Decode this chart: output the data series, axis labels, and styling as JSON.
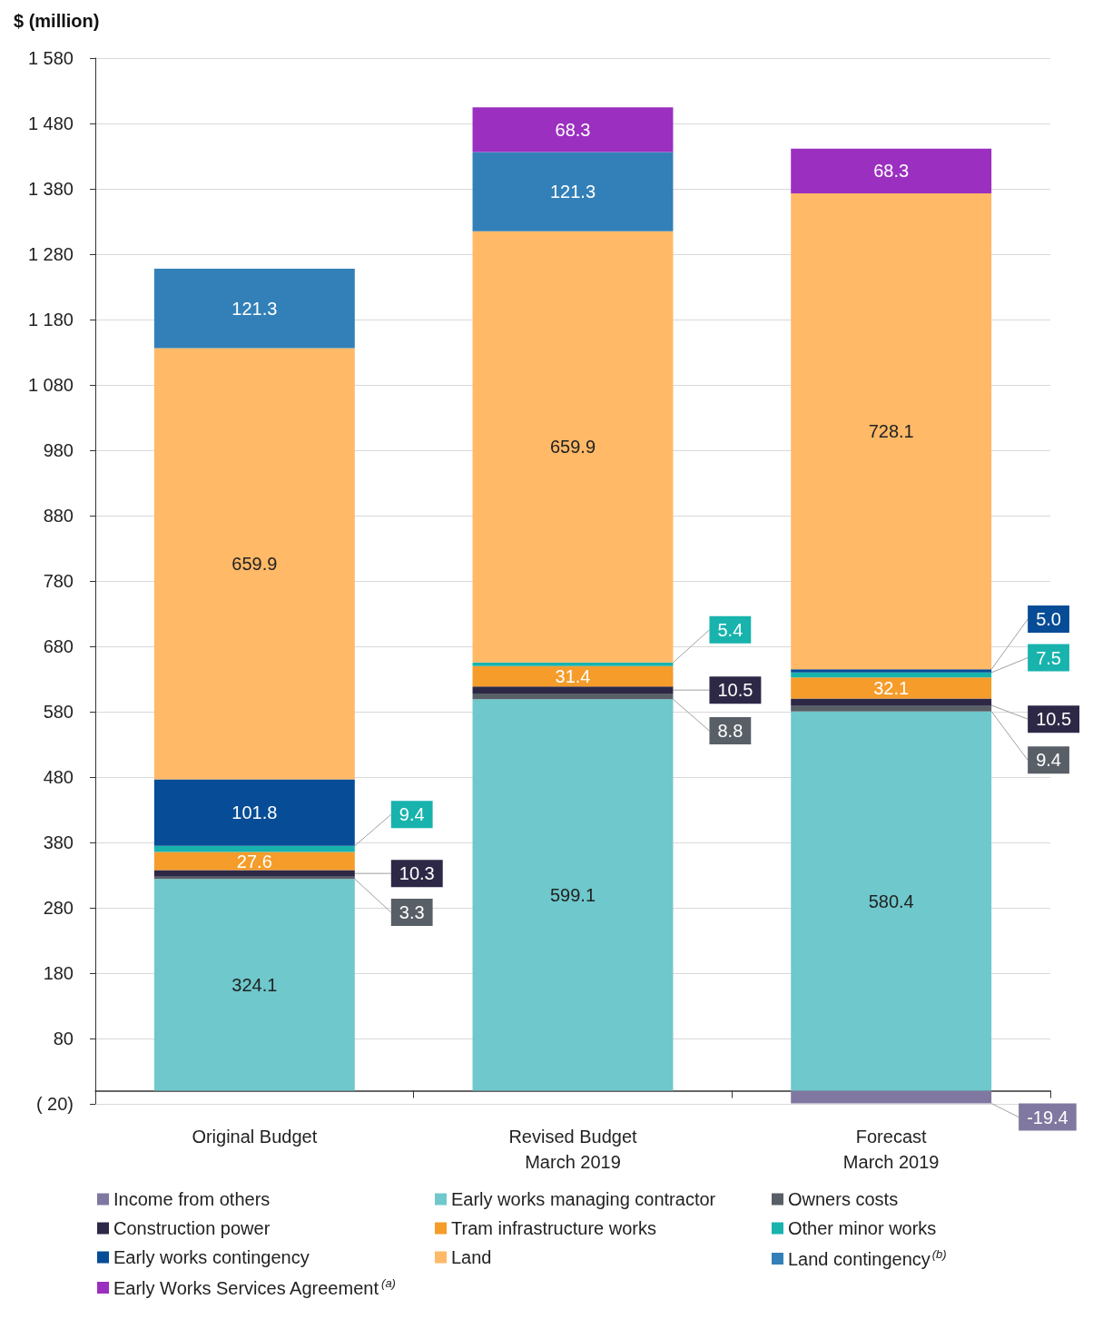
{
  "chart_data": {
    "type": "bar",
    "ylabel": "$ (million)",
    "stacked": true,
    "categories": [
      "Original Budget",
      "Revised Budget\nMarch 2019",
      "Forecast\nMarch 2019"
    ],
    "ylim": [
      -20,
      1580
    ],
    "yticks": [
      {
        "value": -20,
        "label": "( 20)"
      },
      80,
      180,
      280,
      380,
      480,
      580,
      680,
      780,
      880,
      980,
      {
        "value": 1080,
        "label": "1 080"
      },
      {
        "value": 1180,
        "label": "1 180"
      },
      {
        "value": 1280,
        "label": "1 280"
      },
      {
        "value": 1380,
        "label": "1 380"
      },
      {
        "value": 1480,
        "label": "1 480"
      },
      {
        "value": 1580,
        "label": "1 580"
      }
    ],
    "grid": "y",
    "legend": "bottom",
    "series": [
      {
        "name": "Income from others",
        "color": "#8078a0",
        "values": [
          null,
          null,
          -19.4
        ],
        "value_labels": [
          null,
          null,
          "-19.4"
        ]
      },
      {
        "name": "Early works managing contractor",
        "color": "#6ec8cc",
        "values": [
          324.1,
          599.1,
          580.4
        ],
        "value_labels": [
          "324.1",
          "599.1",
          "580.4"
        ]
      },
      {
        "name": "Owners costs",
        "color": "#595f66",
        "values": [
          3.3,
          8.8,
          9.4
        ],
        "value_labels": [
          "3.3",
          "8.8",
          "9.4"
        ]
      },
      {
        "name": "Construction power",
        "color": "#2e2847",
        "values": [
          10.3,
          10.5,
          10.5
        ],
        "value_labels": [
          "10.3",
          "10.5",
          "10.5"
        ]
      },
      {
        "name": "Tram infrastructure works",
        "color": "#f59c2a",
        "values": [
          27.6,
          31.4,
          32.1
        ],
        "value_labels": [
          "27.6",
          "31.4",
          "32.1"
        ]
      },
      {
        "name": "Other minor works",
        "color": "#18b3ad",
        "values": [
          9.4,
          5.4,
          7.5
        ],
        "value_labels": [
          "9.4",
          "5.4",
          "7.5"
        ]
      },
      {
        "name": "Early works contingency",
        "color": "#074c96",
        "values": [
          101.8,
          null,
          5.0
        ],
        "value_labels": [
          "101.8",
          null,
          "5.0"
        ]
      },
      {
        "name": "Land",
        "color": "#ffb967",
        "values": [
          659.9,
          659.9,
          728.1
        ],
        "value_labels": [
          "659.9",
          "659.9",
          "728.1"
        ]
      },
      {
        "name": "Land contingency$^{(b)}$",
        "color": "#3380b8",
        "values": [
          121.3,
          121.3,
          null
        ],
        "value_labels": [
          "121.3",
          "121.3",
          null
        ]
      },
      {
        "name": "Early Works Services Agreement$^{(a)}$",
        "color": "#9b30c0",
        "values": [
          null,
          68.3,
          68.3
        ],
        "value_labels": [
          null,
          "68.3",
          "68.3"
        ]
      }
    ]
  }
}
